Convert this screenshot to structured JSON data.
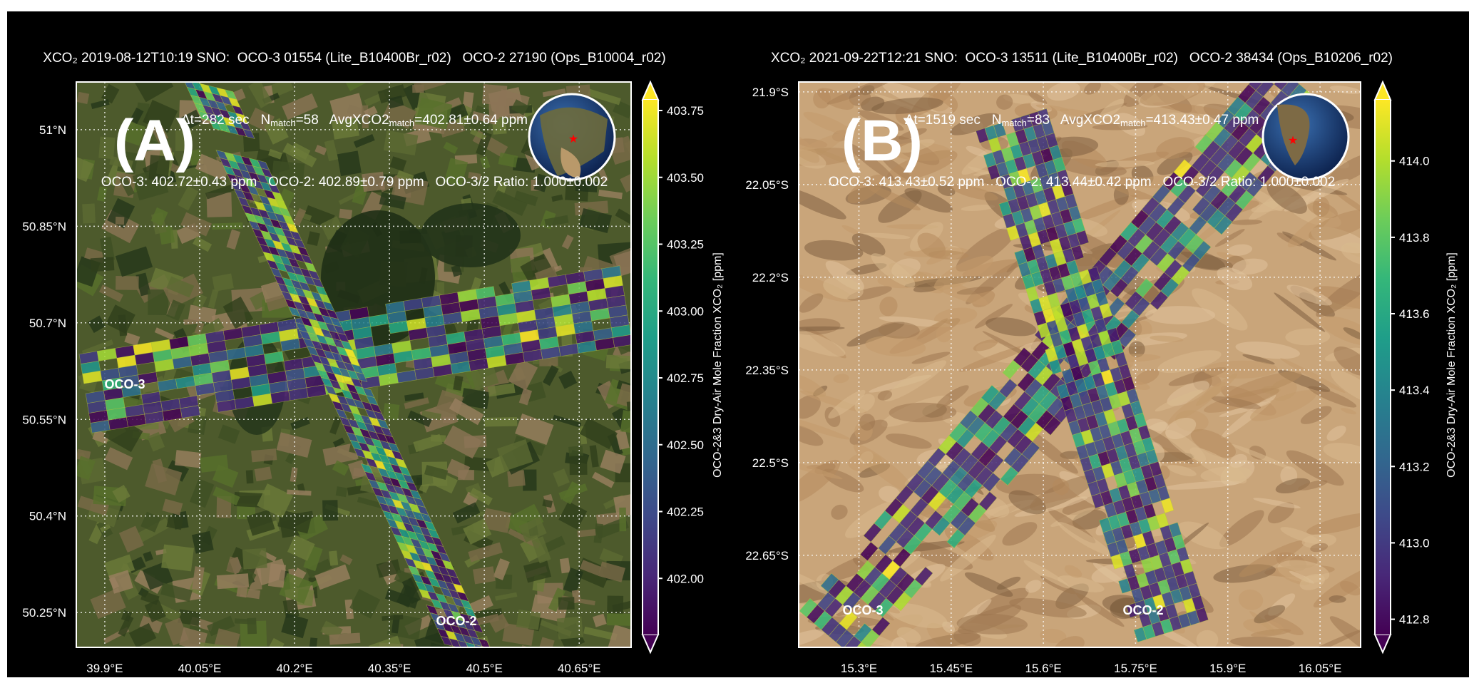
{
  "panels": [
    {
      "id": "A",
      "panel_label": "(A)",
      "title_line1": "XCO₂ 2019-08-12T10:19 SNO:  OCO-3 01554 (Lite_B10400Br_r02)   OCO-2 27190 (Ops_B10004_r02)",
      "title_line2": {
        "dt": "Δt=282 sec",
        "n": "N",
        "n_sub": "match",
        "n_val": "=58",
        "avg": "AvgXCO2",
        "avg_sub": "match",
        "avg_val": "=402.81±0.64 ppm"
      },
      "title_line3": "OCO-3: 402.72±0.43 ppm   OCO-2: 402.89±0.79 ppm   OCO-3/2 Ratio: 1.000±0.002",
      "swath_labels": {
        "oco3": "OCO-3",
        "oco2": "OCO-2"
      },
      "lat_ticks": [
        {
          "v": 51.0,
          "label": "51°N"
        },
        {
          "v": 50.85,
          "label": "50.85°N"
        },
        {
          "v": 50.7,
          "label": "50.7°N"
        },
        {
          "v": 50.55,
          "label": "50.55°N"
        },
        {
          "v": 50.4,
          "label": "50.4°N"
        },
        {
          "v": 50.25,
          "label": "50.25°N"
        }
      ],
      "lon_ticks": [
        {
          "v": 39.9,
          "label": "39.9°E"
        },
        {
          "v": 40.05,
          "label": "40.05°E"
        },
        {
          "v": 40.2,
          "label": "40.2°E"
        },
        {
          "v": 40.35,
          "label": "40.35°E"
        },
        {
          "v": 40.5,
          "label": "40.5°E"
        },
        {
          "v": 40.65,
          "label": "40.65°E"
        }
      ],
      "lon_range": [
        39.855,
        40.732
      ],
      "lat_range": [
        50.196,
        51.074
      ],
      "colorbar": {
        "label": "OCO-2&3 Dry-Air Mole Fraction XCO₂ [ppm]",
        "range": [
          401.79,
          403.79
        ],
        "ticks": [
          {
            "v": 403.75,
            "label": "403.75"
          },
          {
            "v": 403.5,
            "label": "403.50"
          },
          {
            "v": 403.25,
            "label": "403.25"
          },
          {
            "v": 403.0,
            "label": "403.00"
          },
          {
            "v": 402.75,
            "label": "402.75"
          },
          {
            "v": 402.5,
            "label": "402.50"
          },
          {
            "v": 402.25,
            "label": "402.25"
          },
          {
            "v": 402.0,
            "label": "402.00"
          }
        ]
      }
    },
    {
      "id": "B",
      "panel_label": "(B)",
      "title_line1": "XCO₂ 2021-09-22T12:21 SNO:  OCO-3 13511 (Lite_B10400Br_r02)   OCO-2 38434 (Ops_B10206_r02)",
      "title_line2": {
        "dt": "Δt=1519 sec",
        "n": "N",
        "n_sub": "match",
        "n_val": "=83",
        "avg": "AvgXCO2",
        "avg_sub": "match",
        "avg_val": "=413.43±0.47 ppm"
      },
      "title_line3": "OCO-3: 413.43±0.52 ppm   OCO-2: 413.44±0.42 ppm   OCO-3/2 Ratio: 1.000±0.002",
      "swath_labels": {
        "oco3": "OCO-3",
        "oco2": "OCO-2"
      },
      "lat_ticks": [
        {
          "v": -21.9,
          "label": "21.9°S"
        },
        {
          "v": -22.05,
          "label": "22.05°S"
        },
        {
          "v": -22.2,
          "label": "22.2°S"
        },
        {
          "v": -22.35,
          "label": "22.35°S"
        },
        {
          "v": -22.5,
          "label": "22.5°S"
        },
        {
          "v": -22.65,
          "label": "22.65°S"
        }
      ],
      "lon_ticks": [
        {
          "v": 15.3,
          "label": "15.3°E"
        },
        {
          "v": 15.45,
          "label": "15.45°E"
        },
        {
          "v": 15.6,
          "label": "15.6°E"
        },
        {
          "v": 15.75,
          "label": "15.75°E"
        },
        {
          "v": 15.9,
          "label": "15.9°E"
        },
        {
          "v": 16.05,
          "label": "16.05°E"
        }
      ],
      "lon_range": [
        15.202,
        16.116
      ],
      "lat_range": [
        -22.799,
        -21.884
      ],
      "colorbar": {
        "label": "OCO-2&3 Dry-Air Mole Fraction XCO₂ [ppm]",
        "range": [
          412.76,
          414.16
        ],
        "ticks": [
          {
            "v": 414.0,
            "label": "414.0"
          },
          {
            "v": 413.8,
            "label": "413.8"
          },
          {
            "v": 413.6,
            "label": "413.6"
          },
          {
            "v": 413.4,
            "label": "413.4"
          },
          {
            "v": 413.2,
            "label": "413.2"
          },
          {
            "v": 413.0,
            "label": "413.0"
          },
          {
            "v": 412.8,
            "label": "412.8"
          }
        ]
      }
    }
  ],
  "colors": {
    "background": "#000000",
    "grid": "#ffffff",
    "marker": "#ff0000",
    "colormap": "viridis"
  }
}
